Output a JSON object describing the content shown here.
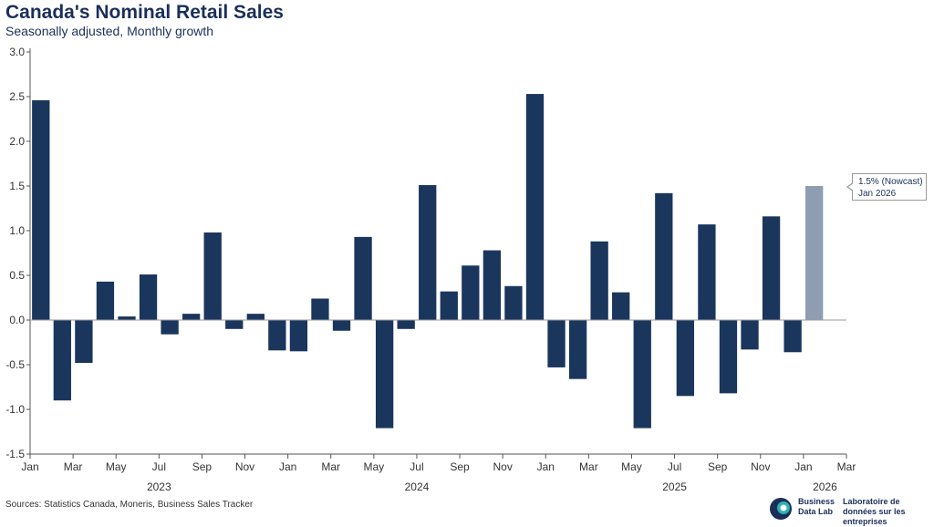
{
  "chart_data": {
    "type": "bar",
    "title": "Canada's Nominal Retail Sales",
    "subtitle": "Seasonally adjusted, Monthly growth",
    "ylim": [
      -1.5,
      3.0
    ],
    "yticks": [
      "-1.5",
      "-1.0",
      "-0.5",
      "0.0",
      "0.5",
      "1.0",
      "1.5",
      "2.0",
      "2.5",
      "3.0"
    ],
    "ytick_values": [
      -1.5,
      -1.0,
      -0.5,
      0.0,
      0.5,
      1.0,
      1.5,
      2.0,
      2.5,
      3.0
    ],
    "xticks": [
      "Jan",
      "Mar",
      "May",
      "Jul",
      "Sep",
      "Nov",
      "Jan",
      "Mar",
      "May",
      "Jul",
      "Sep",
      "Nov",
      "Jan",
      "Mar",
      "May",
      "Jul",
      "Sep",
      "Nov",
      "Jan",
      "Mar"
    ],
    "xtick_month_index": [
      0,
      2,
      4,
      6,
      8,
      10,
      12,
      14,
      16,
      18,
      20,
      22,
      24,
      26,
      28,
      30,
      32,
      34,
      36,
      38
    ],
    "years": [
      {
        "label": "2023",
        "month_index": 6
      },
      {
        "label": "2024",
        "month_index": 18
      },
      {
        "label": "2025",
        "month_index": 30
      },
      {
        "label": "2026",
        "month_index": 37
      }
    ],
    "months": [
      "2023-01",
      "2023-02",
      "2023-03",
      "2023-04",
      "2023-05",
      "2023-06",
      "2023-07",
      "2023-08",
      "2023-09",
      "2023-10",
      "2023-11",
      "2023-12",
      "2024-01",
      "2024-02",
      "2024-03",
      "2024-04",
      "2024-05",
      "2024-06",
      "2024-07",
      "2024-08",
      "2024-09",
      "2024-10",
      "2024-11",
      "2024-12",
      "2025-01",
      "2025-02",
      "2025-03",
      "2025-04",
      "2025-05",
      "2025-06",
      "2025-07",
      "2025-08",
      "2025-09",
      "2025-10",
      "2025-11",
      "2025-12",
      "2026-01"
    ],
    "values": [
      2.46,
      -0.9,
      -0.48,
      0.43,
      0.04,
      0.51,
      -0.16,
      0.07,
      0.98,
      -0.1,
      0.07,
      -0.34,
      -0.35,
      0.24,
      -0.12,
      0.93,
      -1.21,
      -0.1,
      1.51,
      0.32,
      0.61,
      0.78,
      0.38,
      2.53,
      -0.53,
      -0.66,
      0.88,
      0.31,
      -1.21,
      1.42,
      -0.85,
      1.07,
      -0.82,
      -0.33,
      1.16,
      -0.36,
      1.5
    ],
    "nowcast_index": 36,
    "bar_color": "#1b365d",
    "nowcast_color": "#8e9db2",
    "annotation": {
      "line1": "1.5% (Nowcast)",
      "line2": "Jan 2026"
    },
    "grid": false,
    "legend": "none"
  },
  "footer": {
    "sources": "Sources: Statistics Canada, Moneris, Business Sales Tracker",
    "logo_en": "Business Data Lab",
    "logo_fr": "Laboratoire de données sur les entreprises"
  }
}
